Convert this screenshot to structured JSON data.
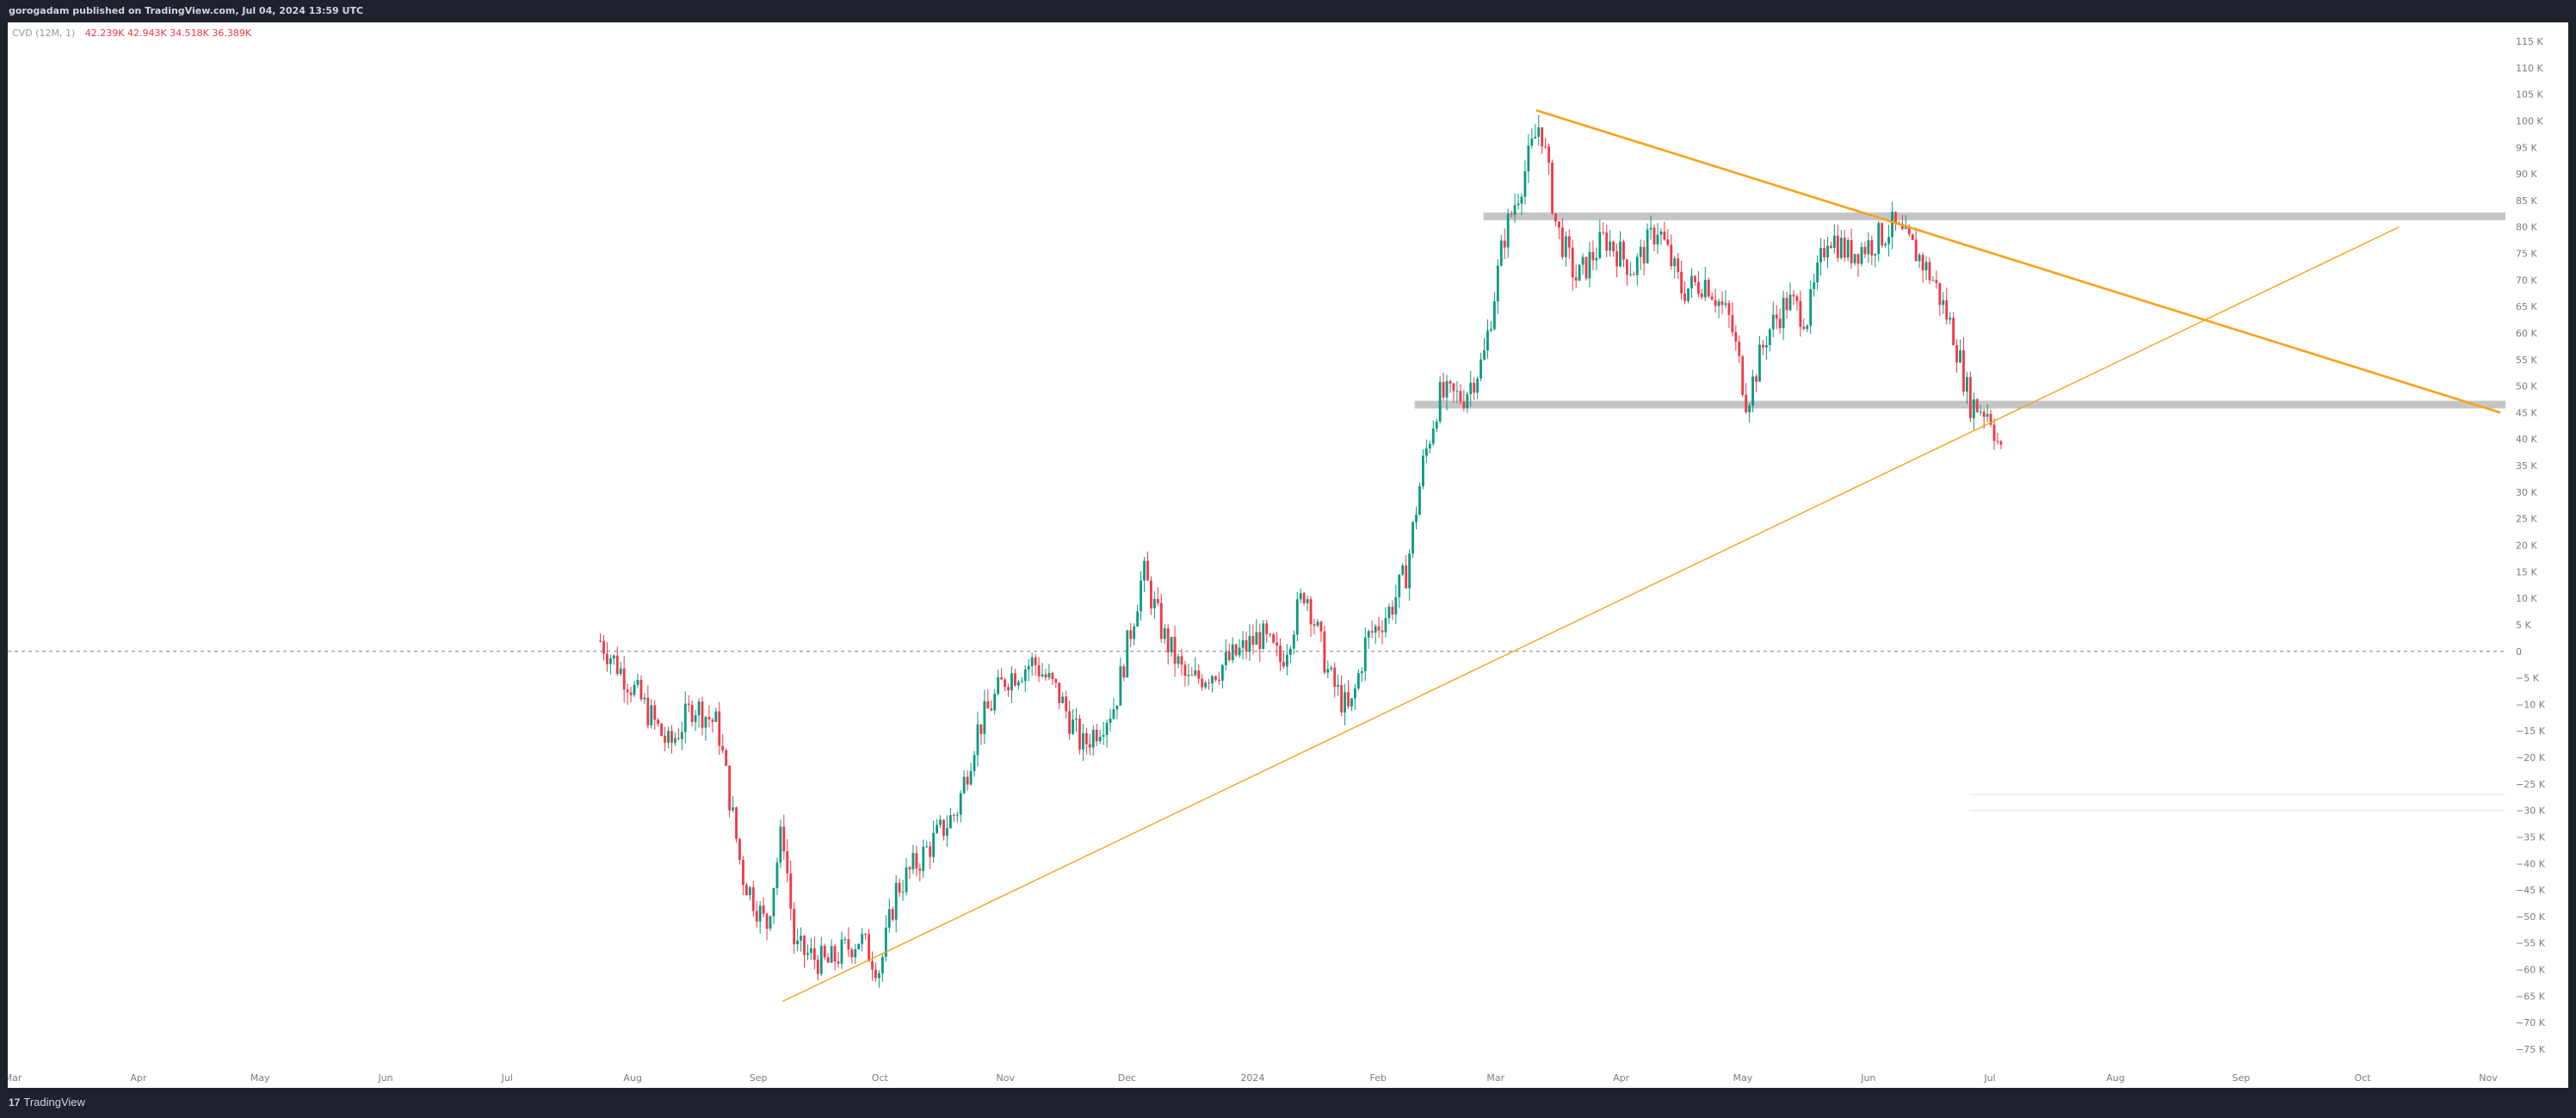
{
  "header": {
    "published_text": "gorogadam published on TradingView.com, Jul 04, 2024 13:59 UTC"
  },
  "indicator": {
    "name": "CVD (12M, 1)",
    "values": "42.239K 42.943K 34.518K 36.389K"
  },
  "footer": {
    "brand": "TradingView",
    "brand_icon": "tradingview-logo-icon"
  },
  "colors": {
    "up": "#089981",
    "down": "#f23645",
    "trendline": "#f7a21b",
    "zone": "#c5c5c5",
    "zero_line": "#9598a1"
  },
  "chart_data": {
    "type": "candlestick",
    "title": "",
    "xlabel": "",
    "ylabel": "",
    "ylim": [
      -77000,
      118000
    ],
    "grid": false,
    "x_ticks": [
      "Mar",
      "Apr",
      "May",
      "Jun",
      "Jul",
      "Aug",
      "Sep",
      "Oct",
      "Nov",
      "Dec",
      "2024",
      "Feb",
      "Mar",
      "Apr",
      "May",
      "Jun",
      "Jul",
      "Aug",
      "Sep",
      "Oct",
      "Nov"
    ],
    "y_ticks": [
      "115 K",
      "110 K",
      "105 K",
      "100 K",
      "95 K",
      "90 K",
      "85 K",
      "80 K",
      "75 K",
      "70 K",
      "65 K",
      "60 K",
      "55 K",
      "50 K",
      "45 K",
      "40 K",
      "35 K",
      "30 K",
      "25 K",
      "20 K",
      "15 K",
      "10 K",
      "5 K",
      "0",
      "−5 K",
      "−10 K",
      "−15 K",
      "−20 K",
      "−25 K",
      "−30 K",
      "−35 K",
      "−40 K",
      "−45 K",
      "−50 K",
      "−55 K",
      "−60 K",
      "−65 K",
      "−70 K",
      "−75 K"
    ],
    "series_path": [
      [
        "2023-07-24",
        2000
      ],
      [
        "2023-08-02",
        -8000
      ],
      [
        "2023-08-10",
        -18000
      ],
      [
        "2023-08-16",
        -10000
      ],
      [
        "2023-08-22",
        -14000
      ],
      [
        "2023-08-28",
        -42000
      ],
      [
        "2023-09-03",
        -52000
      ],
      [
        "2023-09-07",
        -33000
      ],
      [
        "2023-09-10",
        -56000
      ],
      [
        "2023-09-18",
        -59000
      ],
      [
        "2023-09-26",
        -54000
      ],
      [
        "2023-10-01",
        -60000
      ],
      [
        "2023-10-05",
        -45000
      ],
      [
        "2023-10-12",
        -38000
      ],
      [
        "2023-10-20",
        -30000
      ],
      [
        "2023-10-25",
        -15000
      ],
      [
        "2023-11-01",
        -5000
      ],
      [
        "2023-11-08",
        -2000
      ],
      [
        "2023-11-14",
        -8000
      ],
      [
        "2023-11-20",
        -18000
      ],
      [
        "2023-11-28",
        -10000
      ],
      [
        "2023-12-05",
        15000
      ],
      [
        "2023-12-10",
        3000
      ],
      [
        "2023-12-16",
        -6000
      ],
      [
        "2023-12-24",
        -3000
      ],
      [
        "2024-01-03",
        3000
      ],
      [
        "2024-01-08",
        -2000
      ],
      [
        "2024-01-14",
        12000
      ],
      [
        "2024-01-20",
        -5000
      ],
      [
        "2024-01-25",
        -12000
      ],
      [
        "2024-01-29",
        2000
      ],
      [
        "2024-02-04",
        8000
      ],
      [
        "2024-02-08",
        15000
      ],
      [
        "2024-02-12",
        35000
      ],
      [
        "2024-02-16",
        48000
      ],
      [
        "2024-02-22",
        48000
      ],
      [
        "2024-02-27",
        55000
      ],
      [
        "2024-03-03",
        78000
      ],
      [
        "2024-03-08",
        90000
      ],
      [
        "2024-03-12",
        100000
      ],
      [
        "2024-03-16",
        80000
      ],
      [
        "2024-03-21",
        70000
      ],
      [
        "2024-03-28",
        78000
      ],
      [
        "2024-04-04",
        72000
      ],
      [
        "2024-04-10",
        80000
      ],
      [
        "2024-04-16",
        68000
      ],
      [
        "2024-04-22",
        70000
      ],
      [
        "2024-04-28",
        62000
      ],
      [
        "2024-05-02",
        47000
      ],
      [
        "2024-05-07",
        60000
      ],
      [
        "2024-05-12",
        66000
      ],
      [
        "2024-05-17",
        63000
      ],
      [
        "2024-05-22",
        79000
      ],
      [
        "2024-05-27",
        75000
      ],
      [
        "2024-06-02",
        77000
      ],
      [
        "2024-06-07",
        80000
      ],
      [
        "2024-06-13",
        75000
      ],
      [
        "2024-06-17",
        70000
      ],
      [
        "2024-06-22",
        60000
      ],
      [
        "2024-06-26",
        47000
      ],
      [
        "2024-07-01",
        45000
      ],
      [
        "2024-07-04",
        36389
      ]
    ],
    "horizontal_zones": [
      {
        "from": "2024-02-27",
        "value": 82000
      },
      {
        "from": "2024-02-10",
        "value": 46500
      }
    ],
    "trendlines": [
      {
        "from": [
          "2023-09-07",
          -66000
        ],
        "to": [
          "2024-10-10",
          80000
        ],
        "width": "thin"
      },
      {
        "from": [
          "2024-03-11",
          102000
        ],
        "to": [
          "2024-11-04",
          45000
        ],
        "width": "thick"
      }
    ],
    "reference_line": {
      "value": 0,
      "style": "dashed"
    },
    "faint_lines": [
      {
        "from": "2024-06-26",
        "value": -27000
      },
      {
        "from": "2024-06-26",
        "value": -30000
      }
    ]
  }
}
